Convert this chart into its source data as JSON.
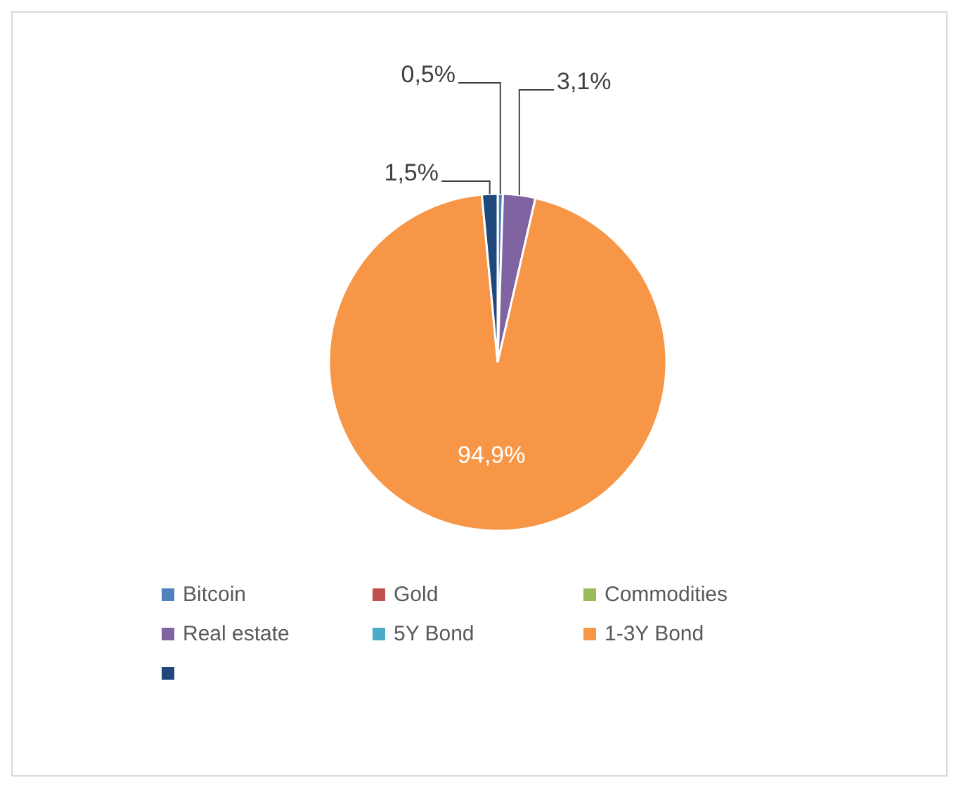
{
  "chart_data": {
    "type": "pie",
    "categories": [
      "Bitcoin",
      "Gold",
      "Commodities",
      "Real estate",
      "5Y Bond",
      "1-3Y Bond",
      null
    ],
    "values": [
      0.5,
      0,
      0,
      3.1,
      0,
      94.9,
      1.5
    ],
    "colors": [
      "#4f81bd",
      "#c0504d",
      "#9bbb59",
      "#8064a2",
      "#4bacc6",
      "#f79646",
      "#1f497d"
    ],
    "value_labels": [
      "0,5%",
      null,
      null,
      "3,1%",
      null,
      "94,9%",
      "1,5%"
    ],
    "legend": "bottom"
  }
}
